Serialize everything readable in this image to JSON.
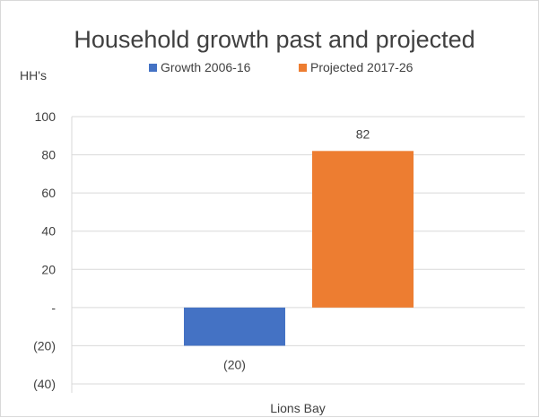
{
  "chart_data": {
    "type": "bar",
    "title": "Household growth past and projected",
    "ylabel": "HH's",
    "xlabel": "",
    "categories": [
      "Lions Bay"
    ],
    "series": [
      {
        "name": "Growth 2006-16",
        "values": [
          -20
        ],
        "value_labels": [
          "(20)"
        ],
        "color": "#4472c4"
      },
      {
        "name": "Projected 2017-26",
        "values": [
          82
        ],
        "value_labels": [
          "82"
        ],
        "color": "#ed7d31"
      }
    ],
    "ylim": [
      -40,
      100
    ],
    "yticks": [
      100,
      80,
      60,
      40,
      20,
      0,
      -20,
      -40
    ],
    "ytick_labels": [
      "100",
      "80",
      "60",
      "40",
      "20",
      "-",
      "(20)",
      "(40)"
    ],
    "grid": true,
    "legend": "top"
  }
}
